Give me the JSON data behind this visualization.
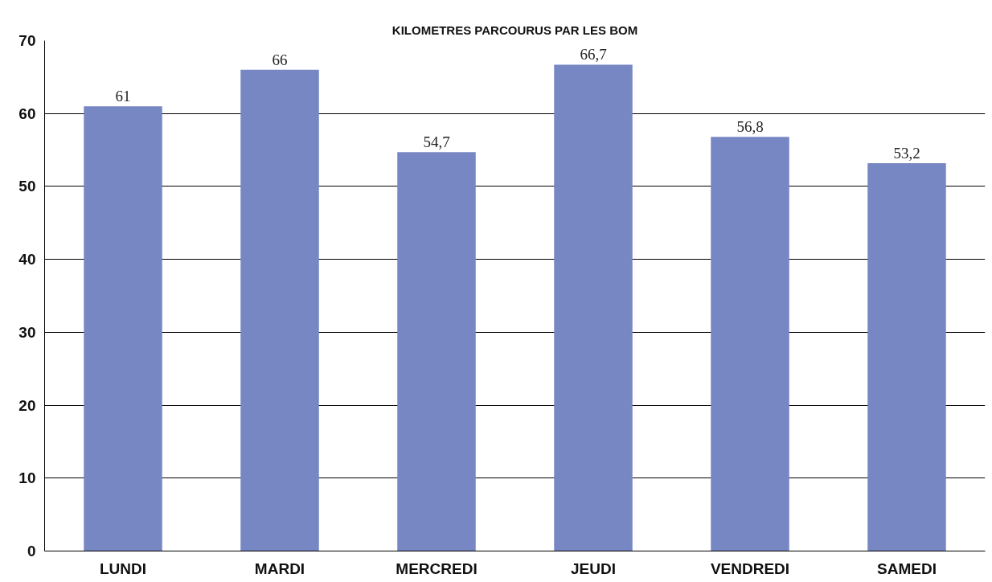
{
  "chart_data": {
    "type": "bar",
    "title": "KILOMETRES PARCOURUS PAR LES BOM",
    "categories": [
      "LUNDI",
      "MARDI",
      "MERCREDI",
      "JEUDI",
      "VENDREDI",
      "SAMEDI"
    ],
    "values": [
      61,
      66,
      54.7,
      66.7,
      56.8,
      53.2
    ],
    "value_labels": [
      "61",
      "66",
      "54,7",
      "66,7",
      "56,8",
      "53,2"
    ],
    "color": "#7787c4",
    "ylim": [
      0,
      70
    ],
    "yticks": [
      0,
      10,
      20,
      30,
      40,
      50,
      60,
      70
    ],
    "grid": "y"
  }
}
